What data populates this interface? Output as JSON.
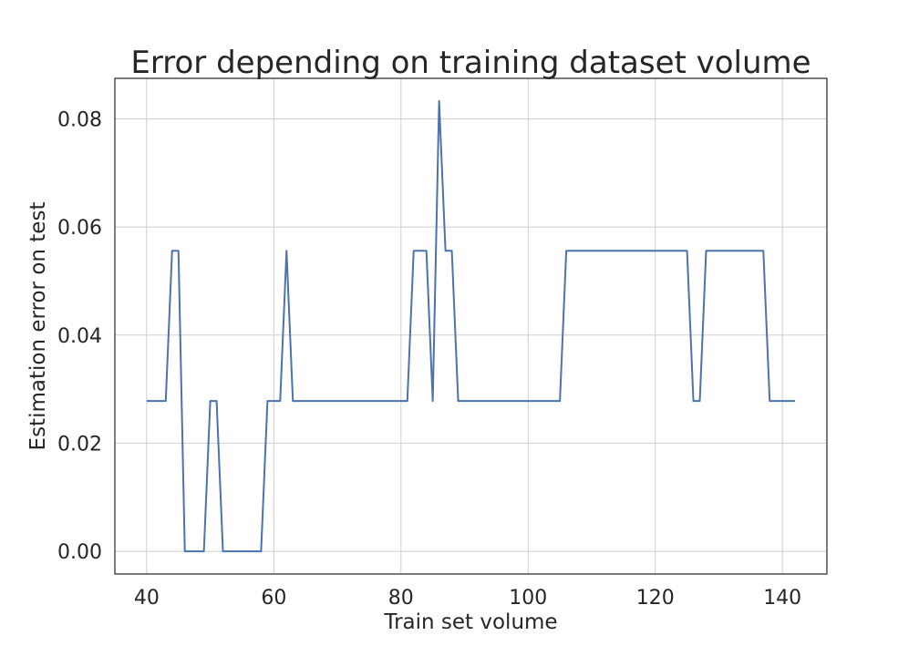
{
  "chart_data": {
    "type": "line",
    "title": "Error depending on training dataset volume",
    "xlabel": "Train set volume",
    "ylabel": "Estimation error on test",
    "xlim": [
      35,
      147
    ],
    "ylim": [
      -0.0042,
      0.0875
    ],
    "xticks": [
      40,
      60,
      80,
      100,
      120,
      140
    ],
    "yticks": [
      0.0,
      0.02,
      0.04,
      0.06,
      0.08
    ],
    "xtick_labels": [
      "40",
      "60",
      "80",
      "100",
      "120",
      "140"
    ],
    "ytick_labels": [
      "0.00",
      "0.02",
      "0.04",
      "0.06",
      "0.08"
    ],
    "grid": true,
    "series": [
      {
        "color": "#4c72b0",
        "x": [
          40,
          41,
          42,
          43,
          44,
          45,
          46,
          47,
          48,
          49,
          50,
          51,
          52,
          53,
          54,
          55,
          56,
          57,
          58,
          59,
          60,
          61,
          62,
          63,
          64,
          65,
          66,
          67,
          68,
          69,
          70,
          71,
          72,
          73,
          74,
          75,
          76,
          77,
          78,
          79,
          80,
          81,
          82,
          83,
          84,
          85,
          86,
          87,
          88,
          89,
          90,
          91,
          92,
          93,
          94,
          95,
          96,
          97,
          98,
          99,
          100,
          101,
          102,
          103,
          104,
          105,
          106,
          107,
          108,
          109,
          110,
          111,
          112,
          113,
          114,
          115,
          116,
          117,
          118,
          119,
          120,
          121,
          122,
          123,
          124,
          125,
          126,
          127,
          128,
          129,
          130,
          131,
          132,
          133,
          134,
          135,
          136,
          137,
          138,
          139,
          140,
          141,
          142
        ],
        "y": [
          0.0278,
          0.0278,
          0.0278,
          0.0278,
          0.0556,
          0.0556,
          0.0,
          0.0,
          0.0,
          0.0,
          0.0278,
          0.0278,
          0.0,
          0.0,
          0.0,
          0.0,
          0.0,
          0.0,
          0.0,
          0.0278,
          0.0278,
          0.0278,
          0.0556,
          0.0278,
          0.0278,
          0.0278,
          0.0278,
          0.0278,
          0.0278,
          0.0278,
          0.0278,
          0.0278,
          0.0278,
          0.0278,
          0.0278,
          0.0278,
          0.0278,
          0.0278,
          0.0278,
          0.0278,
          0.0278,
          0.0278,
          0.0556,
          0.0556,
          0.0556,
          0.0278,
          0.0833,
          0.0556,
          0.0556,
          0.0278,
          0.0278,
          0.0278,
          0.0278,
          0.0278,
          0.0278,
          0.0278,
          0.0278,
          0.0278,
          0.0278,
          0.0278,
          0.0278,
          0.0278,
          0.0278,
          0.0278,
          0.0278,
          0.0278,
          0.0556,
          0.0556,
          0.0556,
          0.0556,
          0.0556,
          0.0556,
          0.0556,
          0.0556,
          0.0556,
          0.0556,
          0.0556,
          0.0556,
          0.0556,
          0.0556,
          0.0556,
          0.0556,
          0.0556,
          0.0556,
          0.0556,
          0.0556,
          0.0278,
          0.0278,
          0.0556,
          0.0556,
          0.0556,
          0.0556,
          0.0556,
          0.0556,
          0.0556,
          0.0556,
          0.0556,
          0.0556,
          0.0278,
          0.0278,
          0.0278,
          0.0278,
          0.0278
        ]
      }
    ]
  }
}
